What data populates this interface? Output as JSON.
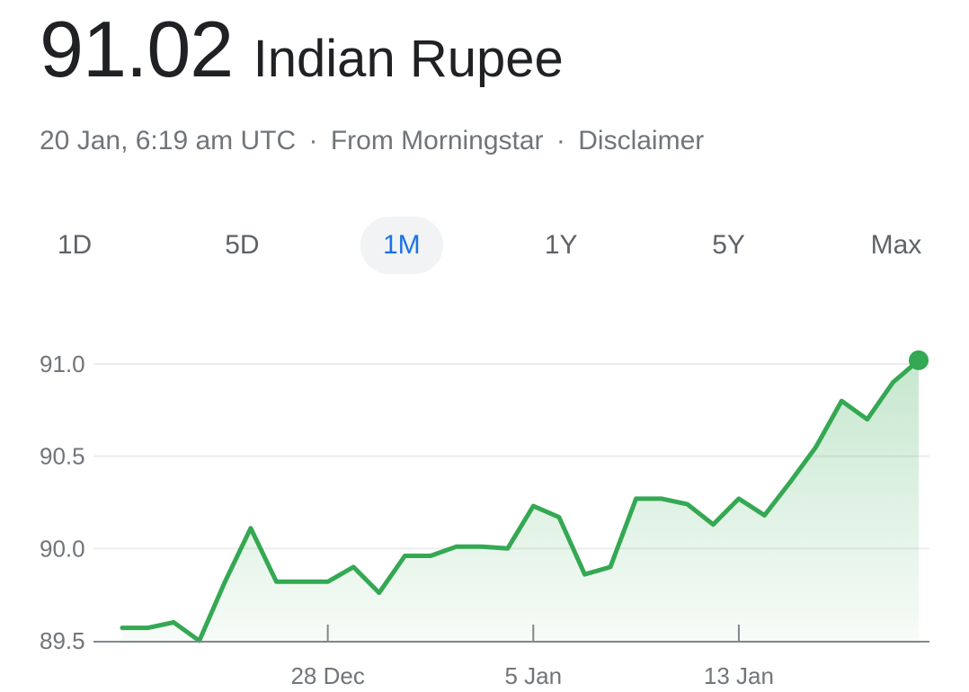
{
  "header": {
    "value": "91.02",
    "currency": "Indian Rupee"
  },
  "meta": {
    "timestamp": "20 Jan, 6:19 am UTC",
    "source": "From Morningstar",
    "disclaimer": "Disclaimer",
    "separator": "·"
  },
  "range_tabs": [
    {
      "label": "1D",
      "active": false
    },
    {
      "label": "5D",
      "active": false
    },
    {
      "label": "1M",
      "active": true
    },
    {
      "label": "1Y",
      "active": false
    },
    {
      "label": "5Y",
      "active": false
    },
    {
      "label": "Max",
      "active": false
    }
  ],
  "colors": {
    "line": "#34a853",
    "active_tab": "#1a73e8"
  },
  "chart_data": {
    "type": "area",
    "title": "",
    "xlabel": "",
    "ylabel": "",
    "ylim": [
      89.5,
      91.0
    ],
    "y_ticks": [
      {
        "value": 91.0,
        "label": "91.0"
      },
      {
        "value": 90.5,
        "label": "90.5"
      },
      {
        "value": 90.0,
        "label": "90.0"
      },
      {
        "value": 89.5,
        "label": "89.5"
      }
    ],
    "x_ticks": [
      {
        "index": 8,
        "label": "28 Dec"
      },
      {
        "index": 16,
        "label": "5 Jan"
      },
      {
        "index": 24,
        "label": "13 Jan"
      }
    ],
    "grid": true,
    "series": [
      {
        "values": [
          89.57,
          89.57,
          89.6,
          89.5,
          89.82,
          90.11,
          89.82,
          89.82,
          89.82,
          89.9,
          89.76,
          89.96,
          89.96,
          90.01,
          90.01,
          90.0,
          90.23,
          90.17,
          89.86,
          89.9,
          90.27,
          90.27,
          90.24,
          90.13,
          90.27,
          90.18,
          90.36,
          90.55,
          90.8,
          90.7,
          90.9,
          91.02
        ]
      }
    ]
  }
}
